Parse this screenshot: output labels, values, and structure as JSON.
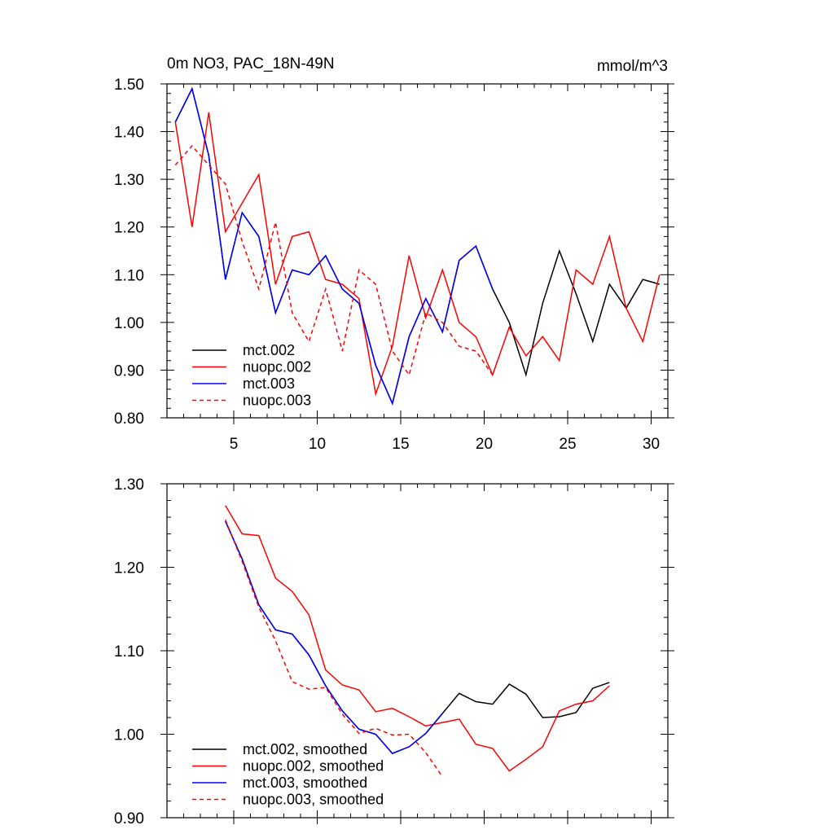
{
  "chart_data": [
    {
      "type": "line",
      "title": "0m NO3, PAC_18N-49N",
      "units": "mmol/m^3",
      "xlabel": "",
      "ylabel": "",
      "xlim": [
        1,
        31
      ],
      "ylim": [
        0.8,
        1.5
      ],
      "xticks": [
        5,
        10,
        15,
        20,
        25,
        30
      ],
      "xtick_labels": [
        "5",
        "10",
        "15",
        "20",
        "25",
        "30"
      ],
      "yticks": [
        0.8,
        0.9,
        1.0,
        1.1,
        1.2,
        1.3,
        1.4,
        1.5
      ],
      "ytick_labels": [
        "0.80",
        "0.90",
        "1.00",
        "1.10",
        "1.20",
        "1.30",
        "1.40",
        "1.50"
      ],
      "legend_position": "bottom-left",
      "series": [
        {
          "name": "mct.002",
          "color": "#000000",
          "dash": "solid",
          "x": [
            1.5,
            2.5,
            3.5,
            4.5,
            5.5,
            6.5,
            7.5,
            8.5,
            9.5,
            10.5,
            11.5,
            12.5,
            13.5,
            14.5,
            15.5,
            16.5,
            17.5,
            18.5,
            19.5,
            20.5,
            21.5,
            22.5,
            23.5,
            24.5,
            25.5,
            26.5,
            27.5,
            28.5,
            29.5,
            30.5
          ],
          "values": [
            1.42,
            1.49,
            1.35,
            1.09,
            1.23,
            1.18,
            1.02,
            1.11,
            1.1,
            1.14,
            1.07,
            1.04,
            0.91,
            0.83,
            0.97,
            1.05,
            0.98,
            1.13,
            1.16,
            1.07,
            1.0,
            0.89,
            1.04,
            1.15,
            1.06,
            0.96,
            1.08,
            1.03,
            1.09,
            1.08
          ]
        },
        {
          "name": "nuopc.002",
          "color": "#ff0000",
          "dash": "solid",
          "x": [
            1.5,
            2.5,
            3.5,
            4.5,
            5.5,
            6.5,
            7.5,
            8.5,
            9.5,
            10.5,
            11.5,
            12.5,
            13.5,
            14.5,
            15.5,
            16.5,
            17.5,
            18.5,
            19.5,
            20.5,
            21.5,
            22.5,
            23.5,
            24.5,
            25.5,
            26.5,
            27.5,
            28.5,
            29.5,
            30.5
          ],
          "values": [
            1.42,
            1.2,
            1.44,
            1.19,
            1.25,
            1.31,
            1.08,
            1.18,
            1.19,
            1.09,
            1.08,
            1.05,
            0.85,
            0.95,
            1.14,
            1.01,
            1.11,
            1.0,
            0.97,
            0.89,
            0.99,
            0.93,
            0.97,
            0.92,
            1.11,
            1.08,
            1.18,
            1.03,
            0.96,
            1.1
          ]
        },
        {
          "name": "mct.003",
          "color": "#0000ff",
          "dash": "solid",
          "x": [
            1.5,
            2.5,
            3.5,
            4.5,
            5.5,
            6.5,
            7.5,
            8.5,
            9.5,
            10.5,
            11.5,
            12.5,
            13.5,
            14.5,
            15.5,
            16.5,
            17.5,
            18.5,
            19.5,
            20.5
          ],
          "values": [
            1.42,
            1.49,
            1.35,
            1.09,
            1.23,
            1.18,
            1.02,
            1.11,
            1.1,
            1.14,
            1.07,
            1.04,
            0.91,
            0.83,
            0.97,
            1.05,
            0.98,
            1.13,
            1.16,
            1.07
          ]
        },
        {
          "name": "nuopc.003",
          "color": "#ff0000",
          "dash": "dashed",
          "x": [
            1.5,
            2.5,
            3.5,
            4.5,
            5.5,
            6.5,
            7.5,
            8.5,
            9.5,
            10.5,
            11.5,
            12.5,
            13.5,
            14.5,
            15.5,
            16.5,
            17.5,
            18.5,
            19.5,
            20.5
          ],
          "values": [
            1.33,
            1.37,
            1.33,
            1.29,
            1.17,
            1.07,
            1.21,
            1.02,
            0.96,
            1.07,
            0.94,
            1.11,
            1.08,
            0.94,
            0.89,
            1.02,
            1.0,
            0.95,
            0.94,
            0.89
          ]
        }
      ]
    },
    {
      "type": "line",
      "title": "",
      "xlabel": "",
      "ylabel": "",
      "xlim": [
        1,
        31
      ],
      "ylim": [
        0.9,
        1.3
      ],
      "xticks": [
        5,
        10,
        15,
        20,
        25,
        30
      ],
      "xtick_labels": [],
      "yticks": [
        0.9,
        1.0,
        1.1,
        1.2,
        1.3
      ],
      "ytick_labels": [
        "0.90",
        "1.00",
        "1.10",
        "1.20",
        "1.30"
      ],
      "legend_position": "bottom-left",
      "series": [
        {
          "name": "mct.002, smoothed",
          "color": "#000000",
          "dash": "solid",
          "x": [
            4.5,
            5.5,
            6.5,
            7.5,
            8.5,
            9.5,
            10.5,
            11.5,
            12.5,
            13.5,
            14.5,
            15.5,
            16.5,
            17.5,
            18.5,
            19.5,
            20.5,
            21.5,
            22.5,
            23.5,
            24.5,
            25.5,
            26.5,
            27.5
          ],
          "values": [
            1.255,
            1.21,
            1.155,
            1.125,
            1.12,
            1.095,
            1.058,
            1.028,
            1.006,
            1.0,
            0.977,
            0.985,
            1.001,
            1.025,
            1.049,
            1.039,
            1.036,
            1.06,
            1.048,
            1.02,
            1.021,
            1.026,
            1.055,
            1.062
          ]
        },
        {
          "name": "nuopc.002, smoothed",
          "color": "#ff0000",
          "dash": "solid",
          "x": [
            4.5,
            5.5,
            6.5,
            7.5,
            8.5,
            9.5,
            10.5,
            11.5,
            12.5,
            13.5,
            14.5,
            15.5,
            16.5,
            17.5,
            18.5,
            19.5,
            20.5,
            21.5,
            22.5,
            23.5,
            24.5,
            25.5,
            26.5,
            27.5
          ],
          "values": [
            1.274,
            1.24,
            1.238,
            1.187,
            1.171,
            1.143,
            1.077,
            1.059,
            1.053,
            1.027,
            1.031,
            1.021,
            1.01,
            1.014,
            1.018,
            0.988,
            0.983,
            0.956,
            0.97,
            0.985,
            1.028,
            1.036,
            1.04,
            1.058
          ]
        },
        {
          "name": "mct.003, smoothed",
          "color": "#0000ff",
          "dash": "solid",
          "x": [
            4.5,
            5.5,
            6.5,
            7.5,
            8.5,
            9.5,
            10.5,
            11.5,
            12.5,
            13.5,
            14.5,
            15.5,
            16.5,
            17.5
          ],
          "values": [
            1.255,
            1.21,
            1.155,
            1.125,
            1.12,
            1.095,
            1.058,
            1.028,
            1.006,
            1.0,
            0.977,
            0.985,
            1.001,
            1.025
          ]
        },
        {
          "name": "nuopc.003, smoothed",
          "color": "#ff0000",
          "dash": "dashed",
          "x": [
            4.5,
            5.5,
            6.5,
            7.5,
            8.5,
            9.5,
            10.5,
            11.5,
            12.5,
            13.5,
            14.5,
            15.5,
            16.5,
            17.5
          ],
          "values": [
            1.257,
            1.207,
            1.152,
            1.112,
            1.063,
            1.054,
            1.056,
            1.024,
            1.001,
            1.007,
            0.999,
            1.0,
            0.978,
            0.949
          ]
        }
      ]
    }
  ]
}
